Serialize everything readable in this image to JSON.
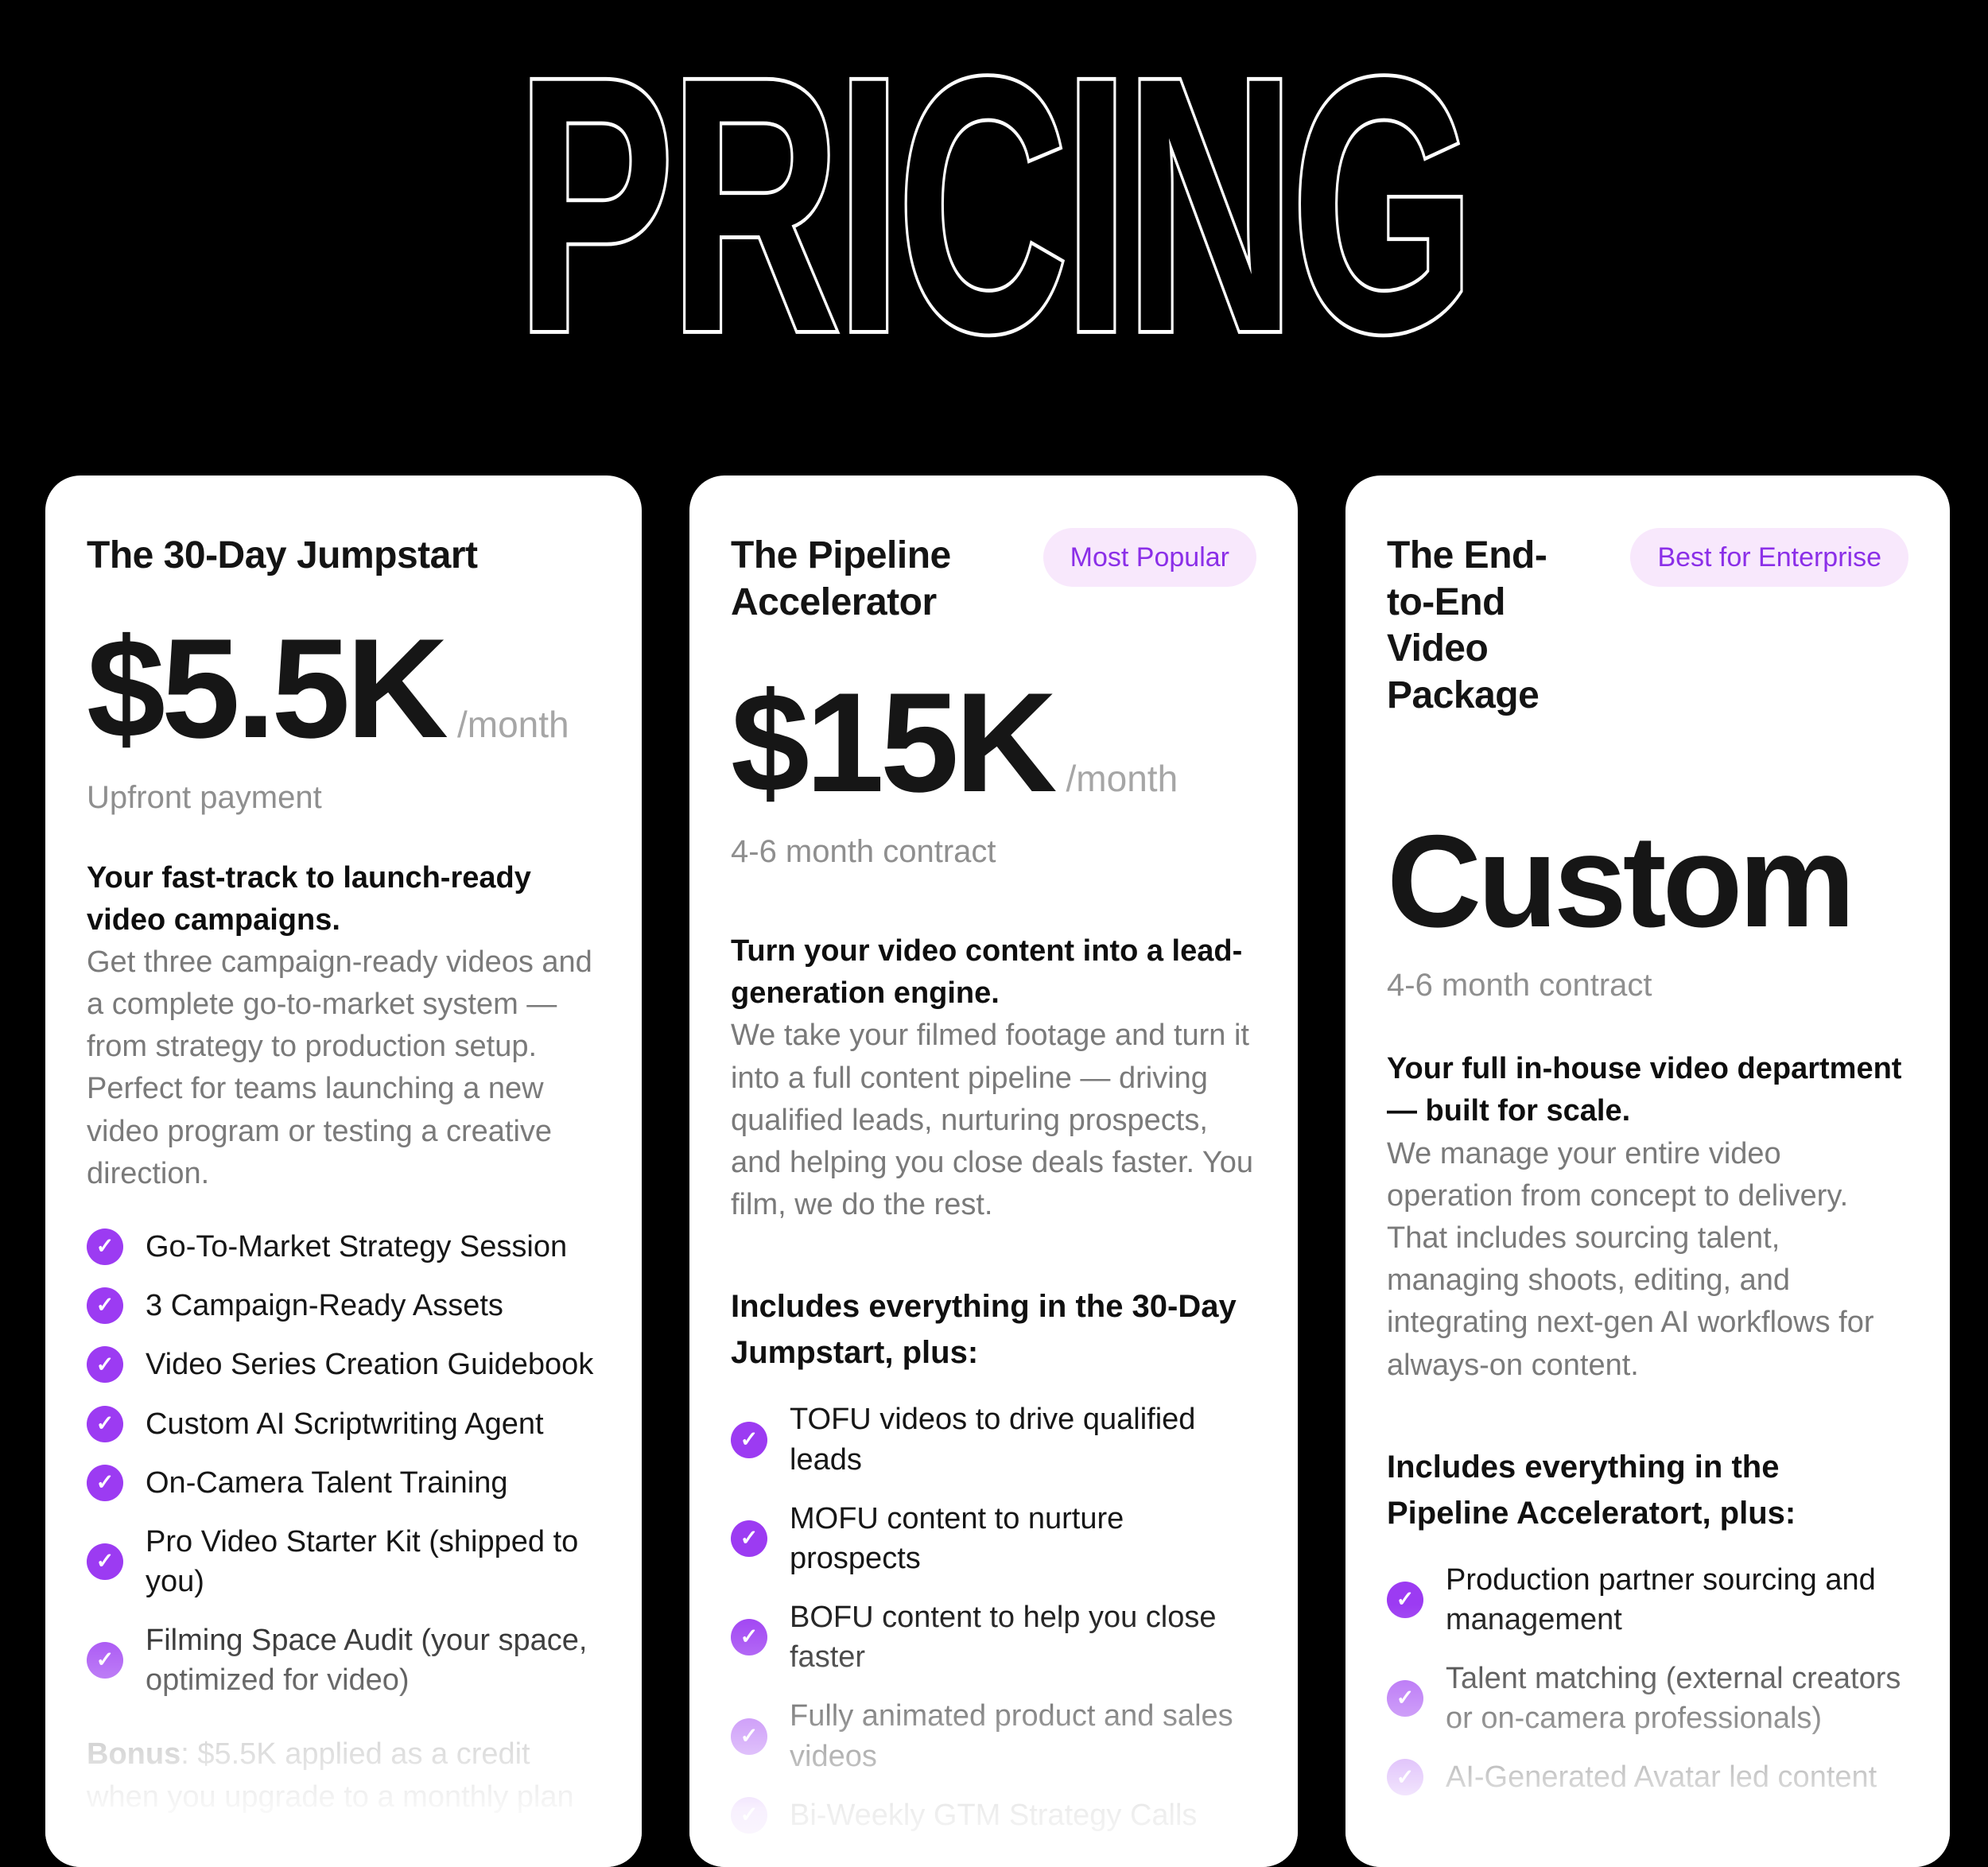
{
  "title": "PRICING",
  "icons": {
    "check": "✓"
  },
  "colors": {
    "background": "#000000",
    "card": "#FFFFFF",
    "accent_purple": "#9C3BF2",
    "badge_bg": "#F8E8FC",
    "badge_text": "#8B2FE8",
    "muted_gray": "#7A7A7A"
  },
  "cards": [
    {
      "name": "The 30-Day Jumpstart",
      "price": "$5.5K",
      "per": "/month",
      "terms": "Upfront payment",
      "tagline": "Your fast-track to launch-ready video campaigns.",
      "description": "Get three campaign-ready videos and a complete go-to-market system — from strategy to production setup. Perfect for teams launching a new video program or testing a creative direction.",
      "features": [
        "Go-To-Market Strategy Session",
        "3 Campaign-Ready Assets",
        "Video Series Creation Guidebook",
        "Custom AI Scriptwriting Agent",
        "On-Camera Talent Training",
        "Pro Video Starter Kit (shipped to you)",
        "Filming Space Audit (your space, optimized for video)"
      ],
      "bonus_label": "Bonus",
      "bonus_text": ": $5.5K applied as a credit when you upgrade to a monthly plan"
    },
    {
      "name": "The Pipeline Accelerator",
      "badge": "Most Popular",
      "price": "$15K",
      "per": "/month",
      "terms": "4-6 month contract",
      "tagline": "Turn your video content into a lead-generation engine.",
      "description": "We take your filmed footage and turn it into a full content pipeline — driving qualified leads, nurturing prospects, and helping you close deals faster. You film, we do the rest.",
      "includes": "Includes everything in the 30-Day Jumpstart, plus:",
      "features": [
        "TOFU videos to drive qualified leads",
        "MOFU content to nurture prospects",
        "BOFU content to help you close faster",
        "Fully animated product and sales videos",
        "Bi-Weekly GTM Strategy Calls"
      ]
    },
    {
      "name": "The End-to-End Video Package",
      "badge": "Best for Enterprise",
      "price": "Custom",
      "terms": "4-6 month contract",
      "tagline": "Your full in-house video department — built for scale.",
      "description": "We manage your entire video operation from concept to delivery. That includes sourcing talent, managing shoots, editing, and integrating next-gen AI workflows for always-on content.",
      "includes": "Includes everything in the Pipeline Acceleratort, plus:",
      "features": [
        "Production partner sourcing and management",
        "Talent matching (external creators or on-camera professionals)",
        "AI-Generated Avatar led content"
      ]
    }
  ]
}
